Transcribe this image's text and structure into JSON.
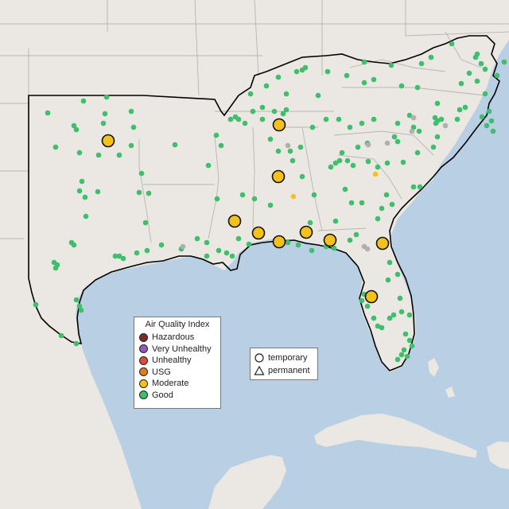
{
  "legend": {
    "title": "Air Quality Index",
    "categories": [
      {
        "label": "Hazardous",
        "color": "#7e2a2a"
      },
      {
        "label": "Very Unhealthy",
        "color": "#8e5bb5"
      },
      {
        "label": "Unhealthy",
        "color": "#e04a38"
      },
      {
        "label": "USG",
        "color": "#e07c1f"
      },
      {
        "label": "Moderate",
        "color": "#f2c21b"
      },
      {
        "label": "Good",
        "color": "#3dbf6c"
      }
    ]
  },
  "site_legend": {
    "items": [
      {
        "label": "temporary",
        "symbol": "circle-icon"
      },
      {
        "label": "permanent",
        "symbol": "triangle-icon"
      }
    ]
  },
  "colors": {
    "land": "#ebe7e2",
    "water": "#b9cfe4",
    "state_border": "#b9b3ad",
    "region_outline": "#000000",
    "no_data": "#b0b0b0"
  }
}
